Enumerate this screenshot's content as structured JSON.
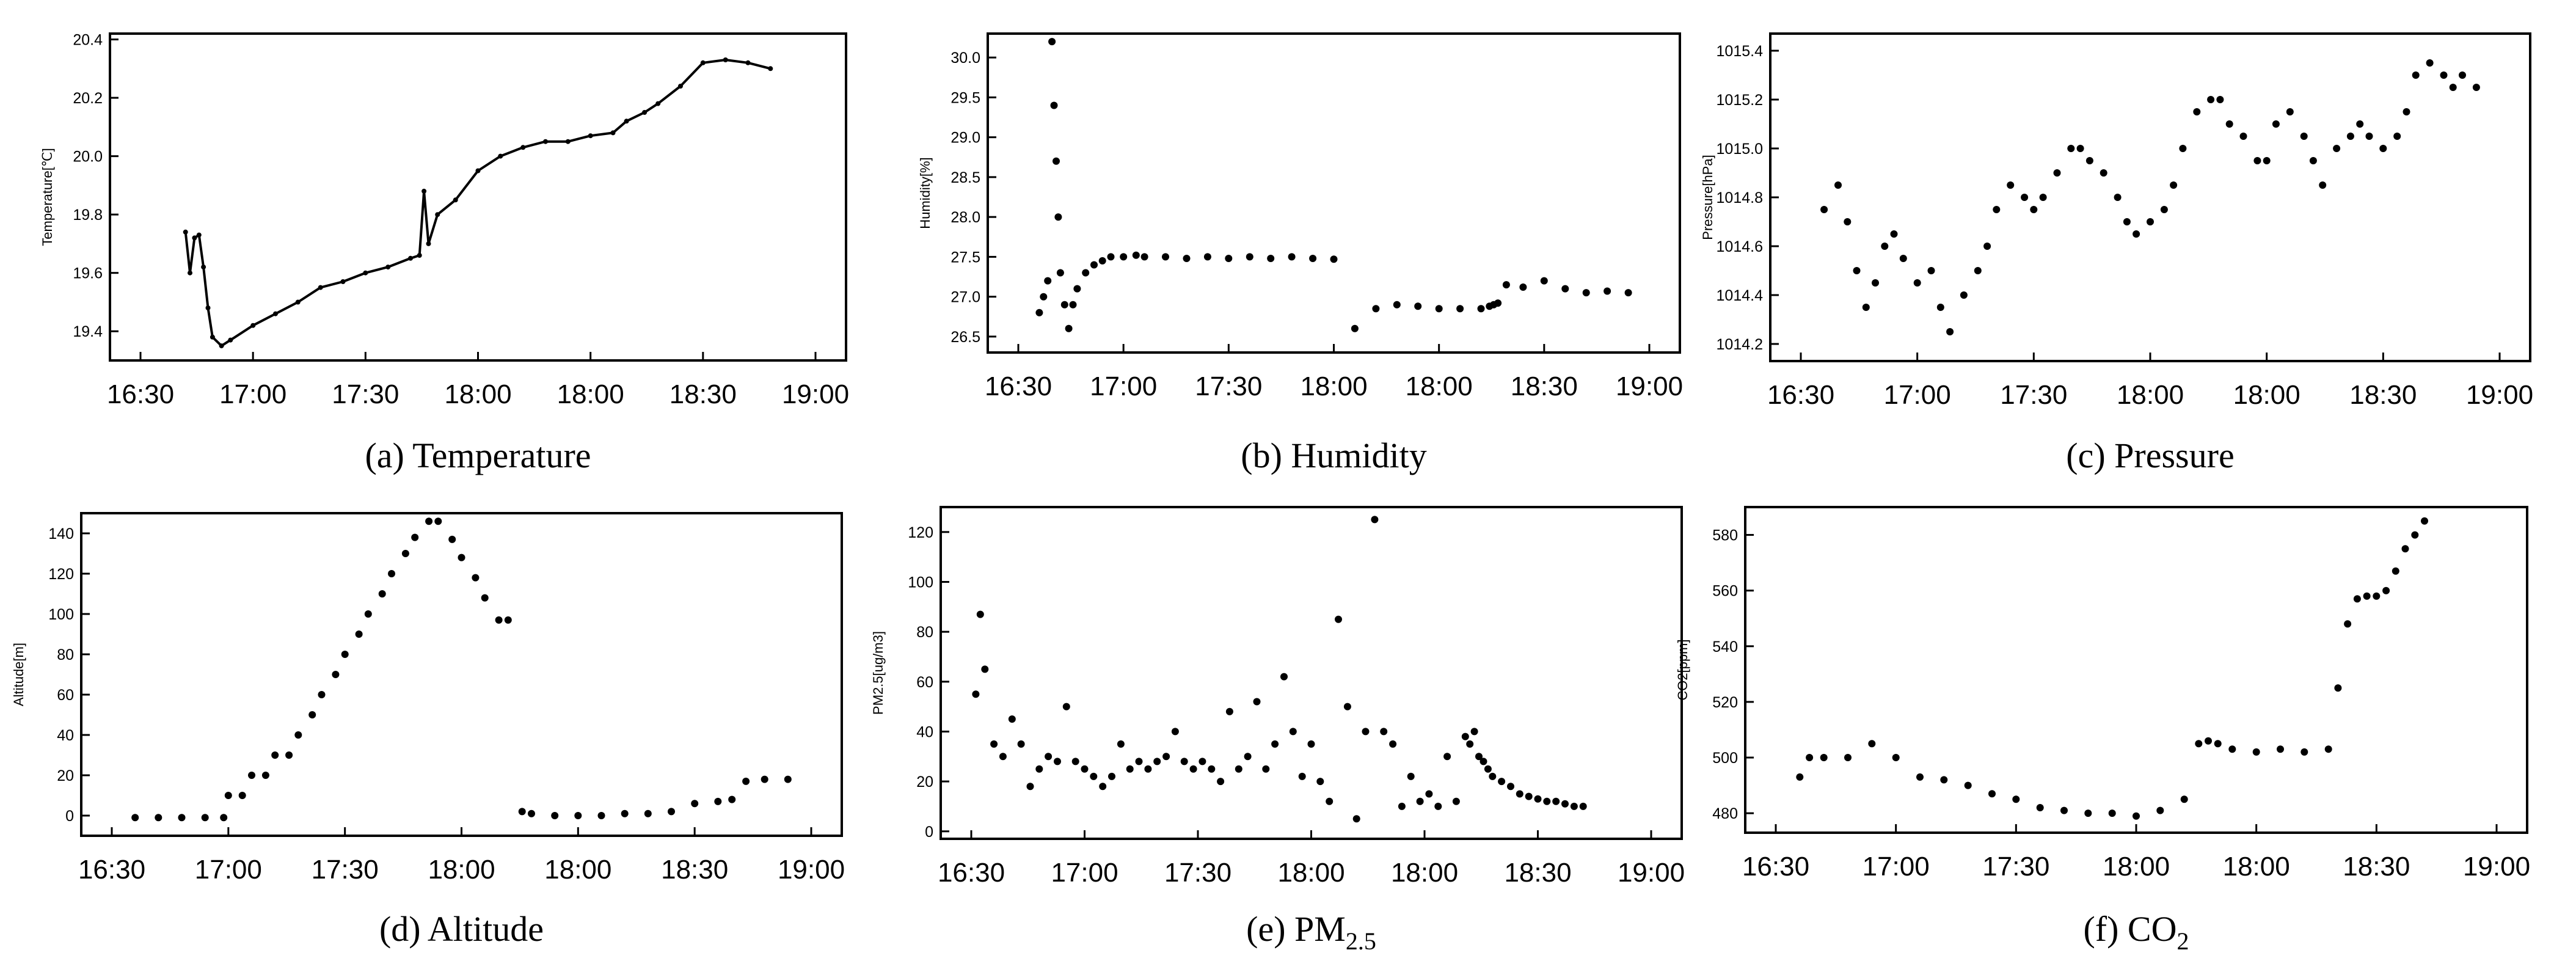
{
  "figure": {
    "captions": [
      "(a) Temperature",
      "(b) Humidity",
      "(c) Pressure",
      "(d) Altitude",
      "(e) PM2.5",
      "(f) CO2"
    ]
  },
  "chart_data": [
    {
      "type": "line",
      "title": "(a) Temperature",
      "caption_main": "(a) Temperature",
      "caption_sub": "",
      "caption_tail": "",
      "xlabel": "",
      "ylabel": "Temperature[℃]",
      "x_ticks": [
        "16:30",
        "17:00",
        "17:30",
        "18:00",
        "18:00",
        "18:30",
        "19:00"
      ],
      "y_ticks": [
        "19.4",
        "19.6",
        "19.8",
        "20.0",
        "20.2",
        "20.4"
      ],
      "y_tick_values": [
        19.4,
        19.6,
        19.8,
        20.0,
        20.2,
        20.4
      ],
      "ylim": [
        19.3,
        20.42
      ],
      "xlim": [
        0,
        150
      ],
      "x": [
        10,
        11,
        12,
        13,
        14,
        15,
        16,
        18,
        20,
        25,
        30,
        35,
        40,
        45,
        50,
        55,
        60,
        62,
        63,
        64,
        66,
        70,
        75,
        80,
        85,
        90,
        95,
        100,
        105,
        108,
        112,
        115,
        120,
        125,
        130,
        135,
        140
      ],
      "values": [
        19.74,
        19.6,
        19.72,
        19.73,
        19.62,
        19.48,
        19.38,
        19.35,
        19.37,
        19.42,
        19.46,
        19.5,
        19.55,
        19.57,
        19.6,
        19.62,
        19.65,
        19.66,
        19.88,
        19.7,
        19.8,
        19.85,
        19.95,
        20.0,
        20.03,
        20.05,
        20.05,
        20.07,
        20.08,
        20.12,
        20.15,
        20.18,
        20.24,
        20.32,
        20.33,
        20.32,
        20.3
      ]
    },
    {
      "type": "scatter",
      "title": "(b) Humidity",
      "caption_main": "(b) Humidity",
      "caption_sub": "",
      "caption_tail": "",
      "xlabel": "",
      "ylabel": "Humidity[%]",
      "x_ticks": [
        "16:30",
        "17:00",
        "17:30",
        "18:00",
        "18:00",
        "18:30",
        "19:00"
      ],
      "y_ticks": [
        "26.5",
        "27.0",
        "27.5",
        "28.0",
        "28.5",
        "29.0",
        "29.5",
        "30.0"
      ],
      "y_tick_values": [
        26.5,
        27.0,
        27.5,
        28.0,
        28.5,
        29.0,
        29.5,
        30.0
      ],
      "ylim": [
        26.3,
        30.3
      ],
      "xlim": [
        0,
        150
      ],
      "x": [
        5,
        6,
        7,
        8,
        8.5,
        9,
        9.5,
        10,
        11,
        12,
        13,
        14,
        16,
        18,
        20,
        22,
        25,
        28,
        30,
        35,
        40,
        45,
        50,
        55,
        60,
        65,
        70,
        75,
        80,
        85,
        90,
        95,
        100,
        105,
        110,
        112,
        113,
        114,
        116,
        120,
        125,
        130,
        135,
        140,
        145
      ],
      "values": [
        26.8,
        27.0,
        27.2,
        30.2,
        29.4,
        28.7,
        28.0,
        27.3,
        26.9,
        26.6,
        26.9,
        27.1,
        27.3,
        27.4,
        27.45,
        27.5,
        27.5,
        27.52,
        27.5,
        27.5,
        27.48,
        27.5,
        27.48,
        27.5,
        27.48,
        27.5,
        27.48,
        27.47,
        26.6,
        26.85,
        26.9,
        26.88,
        26.85,
        26.85,
        26.85,
        26.88,
        26.9,
        26.92,
        27.15,
        27.12,
        27.2,
        27.1,
        27.05,
        27.07,
        27.05
      ]
    },
    {
      "type": "scatter",
      "title": "(c) Pressure",
      "caption_main": "(c) Pressure",
      "caption_sub": "",
      "caption_tail": "",
      "xlabel": "",
      "ylabel": "Pressure[hPa]",
      "x_ticks": [
        "16:30",
        "17:00",
        "17:30",
        "18:00",
        "18:00",
        "18:30",
        "19:00"
      ],
      "y_ticks": [
        "1014.2",
        "1014.4",
        "1014.6",
        "1014.8",
        "1015.0",
        "1015.2",
        "1015.4"
      ],
      "y_tick_values": [
        1014.2,
        1014.4,
        1014.6,
        1014.8,
        1015.0,
        1015.2,
        1015.4
      ],
      "ylim": [
        1014.13,
        1015.47
      ],
      "xlim": [
        0,
        150
      ],
      "x": [
        5,
        8,
        10,
        12,
        14,
        16,
        18,
        20,
        22,
        25,
        28,
        30,
        32,
        35,
        38,
        40,
        42,
        45,
        48,
        50,
        52,
        55,
        58,
        60,
        62,
        65,
        68,
        70,
        72,
        75,
        78,
        80,
        82,
        85,
        88,
        90,
        92,
        95,
        98,
        100,
        102,
        105,
        108,
        110,
        112,
        115,
        118,
        120,
        122,
        125,
        128,
        130,
        132,
        135,
        138,
        140,
        142,
        145
      ],
      "values": [
        1014.75,
        1014.85,
        1014.7,
        1014.5,
        1014.35,
        1014.45,
        1014.6,
        1014.65,
        1014.55,
        1014.45,
        1014.5,
        1014.35,
        1014.25,
        1014.4,
        1014.5,
        1014.6,
        1014.75,
        1014.85,
        1014.8,
        1014.75,
        1014.8,
        1014.9,
        1015.0,
        1015.0,
        1014.95,
        1014.9,
        1014.8,
        1014.7,
        1014.65,
        1014.7,
        1014.75,
        1014.85,
        1015.0,
        1015.15,
        1015.2,
        1015.2,
        1015.1,
        1015.05,
        1014.95,
        1014.95,
        1015.1,
        1015.15,
        1015.05,
        1014.95,
        1014.85,
        1015.0,
        1015.05,
        1015.1,
        1015.05,
        1015.0,
        1015.05,
        1015.15,
        1015.3,
        1015.35,
        1015.3,
        1015.25,
        1015.3,
        1015.25
      ]
    },
    {
      "type": "scatter",
      "title": "(d) Altitude",
      "caption_main": "(d) Altitude",
      "caption_sub": "",
      "caption_tail": "",
      "xlabel": "",
      "ylabel": "Altitude[m]",
      "x_ticks": [
        "16:30",
        "17:00",
        "17:30",
        "18:00",
        "18:00",
        "18:30",
        "19:00"
      ],
      "y_ticks": [
        "0",
        "20",
        "40",
        "60",
        "80",
        "100",
        "120",
        "140"
      ],
      "y_tick_values": [
        0,
        20,
        40,
        60,
        80,
        100,
        120,
        140
      ],
      "ylim": [
        -10,
        150
      ],
      "xlim": [
        0,
        150
      ],
      "x": [
        5,
        10,
        15,
        20,
        24,
        25,
        28,
        30,
        33,
        35,
        38,
        40,
        43,
        45,
        48,
        50,
        53,
        55,
        58,
        60,
        63,
        65,
        68,
        70,
        73,
        75,
        78,
        80,
        83,
        85,
        88,
        90,
        95,
        100,
        105,
        110,
        115,
        120,
        125,
        130,
        133,
        136,
        140,
        145
      ],
      "values": [
        -1,
        -1,
        -1,
        -1,
        -1,
        10,
        10,
        20,
        20,
        30,
        30,
        40,
        50,
        60,
        70,
        80,
        90,
        100,
        110,
        120,
        130,
        138,
        146,
        146,
        137,
        128,
        118,
        108,
        97,
        97,
        2,
        1,
        0,
        0,
        0,
        1,
        1,
        2,
        6,
        7,
        8,
        17,
        18,
        18
      ]
    },
    {
      "type": "scatter",
      "title": "(e) PM2.5",
      "caption_main": "(e) PM",
      "caption_sub": "2.5",
      "caption_tail": "",
      "xlabel": "",
      "ylabel": "PM2.5[ug/m3]",
      "x_ticks": [
        "16:30",
        "17:00",
        "17:30",
        "18:00",
        "18:00",
        "18:30",
        "19:00"
      ],
      "y_ticks": [
        "0",
        "20",
        "40",
        "60",
        "80",
        "100",
        "120"
      ],
      "y_tick_values": [
        0,
        20,
        40,
        60,
        80,
        100,
        120
      ],
      "ylim": [
        -3,
        130
      ],
      "xlim": [
        0,
        150
      ],
      "x": [
        1,
        2,
        3,
        5,
        7,
        9,
        11,
        13,
        15,
        17,
        19,
        21,
        23,
        25,
        27,
        29,
        31,
        33,
        35,
        37,
        39,
        41,
        43,
        45,
        47,
        49,
        51,
        53,
        55,
        57,
        59,
        61,
        63,
        65,
        67,
        69,
        71,
        73,
        75,
        77,
        79,
        81,
        83,
        85,
        87,
        89,
        91,
        93,
        95,
        97,
        99,
        101,
        103,
        105,
        107,
        109,
        110,
        111,
        112,
        113,
        114,
        115,
        117,
        119,
        121,
        123,
        125,
        127,
        129,
        131,
        133,
        135
      ],
      "values": [
        55,
        87,
        65,
        35,
        30,
        45,
        35,
        18,
        25,
        30,
        28,
        50,
        28,
        25,
        22,
        18,
        22,
        35,
        25,
        28,
        25,
        28,
        30,
        40,
        28,
        25,
        28,
        25,
        20,
        48,
        25,
        30,
        52,
        25,
        35,
        62,
        40,
        22,
        35,
        20,
        12,
        85,
        50,
        5,
        40,
        125,
        40,
        35,
        10,
        22,
        12,
        15,
        10,
        30,
        12,
        38,
        35,
        40,
        30,
        28,
        25,
        22,
        20,
        18,
        15,
        14,
        13,
        12,
        12,
        11,
        10,
        10
      ]
    },
    {
      "type": "scatter",
      "title": "(f) CO2",
      "caption_main": "(f) CO",
      "caption_sub": "2",
      "caption_tail": "",
      "xlabel": "",
      "ylabel": "CO2[ppm]",
      "x_ticks": [
        "16:30",
        "17:00",
        "17:30",
        "18:00",
        "18:00",
        "18:30",
        "19:00"
      ],
      "y_ticks": [
        "480",
        "500",
        "520",
        "540",
        "560",
        "580"
      ],
      "y_tick_values": [
        480,
        500,
        520,
        540,
        560,
        580
      ],
      "ylim": [
        473,
        590
      ],
      "xlim": [
        0,
        150
      ],
      "x": [
        5,
        7,
        10,
        15,
        20,
        25,
        30,
        35,
        40,
        45,
        50,
        55,
        60,
        65,
        70,
        75,
        80,
        85,
        88,
        90,
        92,
        95,
        100,
        105,
        110,
        115,
        117,
        119,
        121,
        123,
        125,
        127,
        129,
        131,
        133,
        135
      ],
      "values": [
        493,
        500,
        500,
        500,
        505,
        500,
        493,
        492,
        490,
        487,
        485,
        482,
        481,
        480,
        480,
        479,
        481,
        485,
        505,
        506,
        505,
        503,
        502,
        503,
        502,
        503,
        525,
        548,
        557,
        558,
        558,
        560,
        567,
        575,
        580,
        585
      ]
    }
  ]
}
